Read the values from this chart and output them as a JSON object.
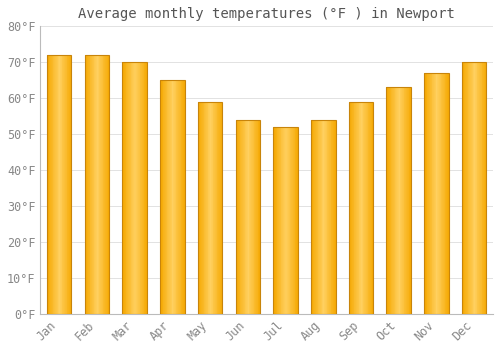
{
  "title": "Average monthly temperatures (°F ) in Newport",
  "months": [
    "Jan",
    "Feb",
    "Mar",
    "Apr",
    "May",
    "Jun",
    "Jul",
    "Aug",
    "Sep",
    "Oct",
    "Nov",
    "Dec"
  ],
  "values": [
    72,
    72,
    70,
    65,
    59,
    54,
    52,
    54,
    59,
    63,
    67,
    70
  ],
  "bar_color_center": "#FFD060",
  "bar_color_edge": "#F5A800",
  "bar_outline_color": "#C8840A",
  "background_color": "#FFFFFF",
  "grid_color": "#DDDDDD",
  "ylim": [
    0,
    80
  ],
  "yticks": [
    0,
    10,
    20,
    30,
    40,
    50,
    60,
    70,
    80
  ],
  "ylabel_suffix": "°F",
  "title_fontsize": 10,
  "tick_fontsize": 8.5,
  "tick_color": "#888888",
  "title_color": "#555555",
  "font_family": "monospace",
  "bar_width": 0.65,
  "gradient_steps": 30
}
